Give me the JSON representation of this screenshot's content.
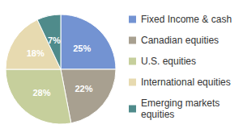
{
  "chart_data": {
    "type": "pie",
    "categories": [
      "Fixed Income & cash",
      "Canadian equities",
      "U.S. equities",
      "International equities",
      "Emerging markets equities"
    ],
    "values": [
      25,
      22,
      28,
      18,
      7
    ],
    "value_labels": [
      "25%",
      "22%",
      "28%",
      "18%",
      "7%"
    ],
    "colors": [
      "#7393d2",
      "#a8a090",
      "#c6cf9c",
      "#e7dab0",
      "#4f8b8b"
    ],
    "data_labels": true,
    "legend": "right"
  }
}
